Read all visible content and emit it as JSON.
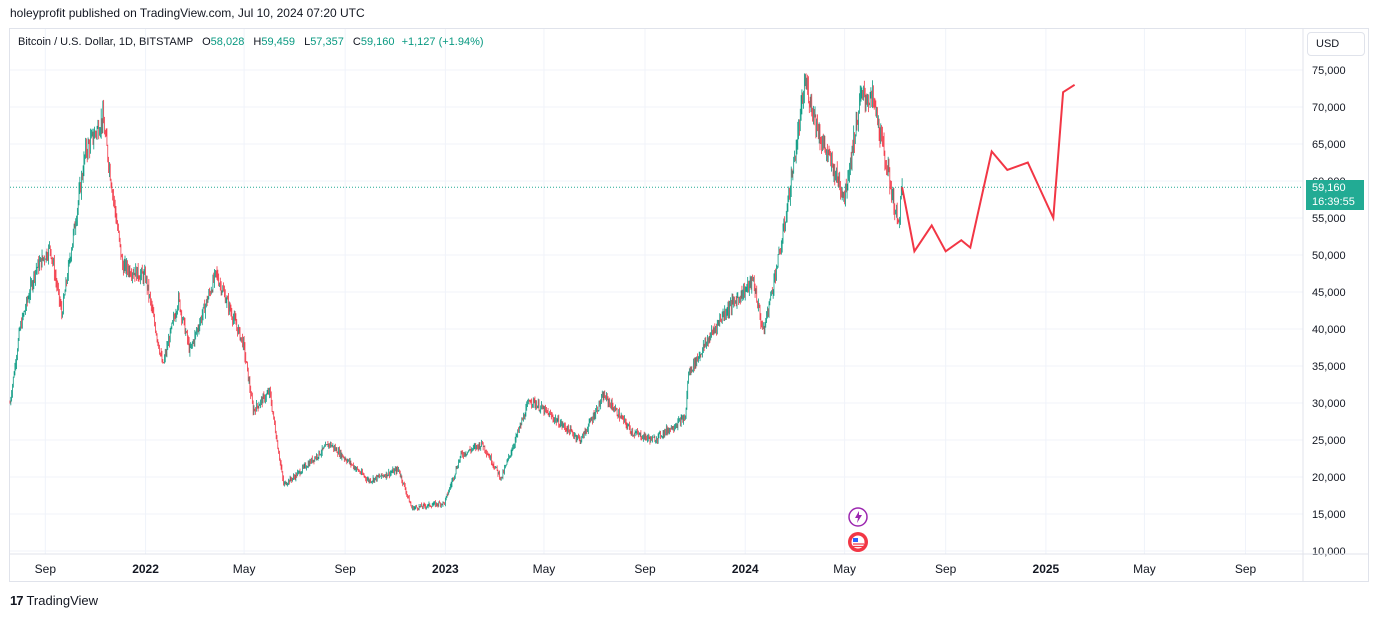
{
  "header": {
    "published": "holeyprofit published on TradingView.com, Jul 10, 2024 07:20 UTC"
  },
  "legend": {
    "symbol": "Bitcoin / U.S. Dollar, 1D, BITSTAMP",
    "o_label": "O",
    "o_value": "58,028",
    "h_label": "H",
    "h_value": "59,459",
    "l_label": "L",
    "l_value": "57,357",
    "c_label": "C",
    "c_value": "59,160",
    "change": "+1,127 (+1.94%)"
  },
  "currency": "USD",
  "last_price": {
    "value": "59,160",
    "countdown": "16:39:55"
  },
  "footer": {
    "brand": "TradingView"
  },
  "colors": {
    "up": "#089981",
    "down": "#f23645",
    "projection": "#f23645",
    "grid": "#f0f3fa",
    "last_price": "#22ab94"
  },
  "chart_data": {
    "type": "line",
    "title": "Bitcoin / U.S. Dollar, 1D, BITSTAMP",
    "ylim": [
      10000,
      76000
    ],
    "y_ticks": [
      10000,
      15000,
      20000,
      25000,
      30000,
      35000,
      40000,
      45000,
      50000,
      55000,
      60000,
      65000,
      70000,
      75000
    ],
    "y_tick_labels": [
      "10,000",
      "15,000",
      "20,000",
      "25,000",
      "30,000",
      "35,000",
      "40,000",
      "45,000",
      "50,000",
      "55,000",
      "60,000",
      "65,000",
      "70,000",
      "75,000"
    ],
    "x_tick_labels": [
      "Sep",
      "2022",
      "May",
      "Sep",
      "2023",
      "May",
      "Sep",
      "2024",
      "May",
      "Sep",
      "2025",
      "May",
      "Sep"
    ],
    "x_tick_dates": [
      "2021-09-01",
      "2022-01-01",
      "2022-05-01",
      "2022-09-01",
      "2023-01-01",
      "2023-05-01",
      "2023-09-01",
      "2024-01-01",
      "2024-05-01",
      "2024-09-01",
      "2025-01-01",
      "2025-05-01",
      "2025-09-01"
    ],
    "grid": true,
    "series": [
      {
        "x": [
          "2021-07-20",
          "2021-08-01",
          "2021-08-20",
          "2021-09-07",
          "2021-09-21",
          "2021-10-20",
          "2021-11-10",
          "2021-12-04",
          "2022-01-01",
          "2022-01-22",
          "2022-02-10",
          "2022-02-24",
          "2022-03-28",
          "2022-04-30",
          "2022-05-12",
          "2022-06-01",
          "2022-06-18",
          "2022-07-01",
          "2022-08-13",
          "2022-09-30",
          "2022-11-05",
          "2022-11-21",
          "2022-12-31",
          "2023-01-20",
          "2023-02-15",
          "2023-03-10",
          "2023-04-14",
          "2023-06-15",
          "2023-07-13",
          "2023-08-17",
          "2023-09-11",
          "2023-10-20",
          "2023-10-24",
          "2023-12-05",
          "2024-01-11",
          "2024-01-23",
          "2024-02-15",
          "2024-03-05",
          "2024-03-14",
          "2024-04-01",
          "2024-05-01",
          "2024-05-21",
          "2024-06-05",
          "2024-06-24",
          "2024-07-05",
          "2024-07-10"
        ],
        "values": [
          30000,
          40000,
          48000,
          51000,
          42000,
          64000,
          68500,
          48500,
          47000,
          35000,
          44000,
          37000,
          47500,
          38000,
          29000,
          31500,
          19000,
          20000,
          24500,
          19500,
          21000,
          15800,
          16500,
          23000,
          24500,
          19800,
          30500,
          25000,
          31000,
          26000,
          25000,
          28000,
          34000,
          42000,
          46500,
          39500,
          52000,
          66000,
          73500,
          66000,
          58000,
          71500,
          71000,
          60500,
          54000,
          59160
        ]
      },
      {
        "name": "projection",
        "x": [
          "2024-07-10",
          "2024-07-25",
          "2024-08-15",
          "2024-09-01",
          "2024-09-20",
          "2024-10-01",
          "2024-10-27",
          "2024-11-15",
          "2024-12-10",
          "2025-01-10",
          "2025-01-22",
          "2025-02-05"
        ],
        "values": [
          59160,
          50500,
          54000,
          50500,
          52000,
          51000,
          64000,
          61500,
          62500,
          55000,
          72000,
          73000
        ]
      }
    ]
  }
}
